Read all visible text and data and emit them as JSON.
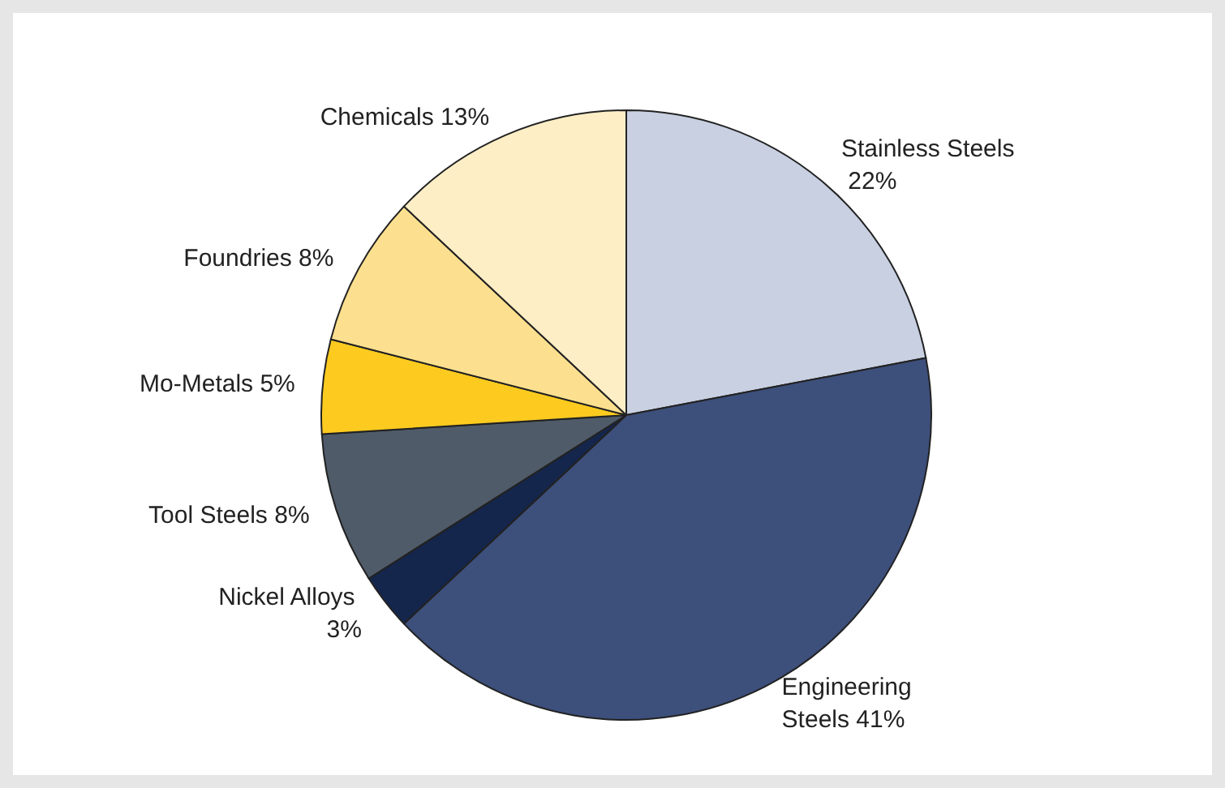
{
  "chart_data": {
    "type": "pie",
    "categories": [
      "Stainless Steels",
      "Engineering Steels",
      "Nickel Alloys",
      "Tool Steels",
      "Mo-Metals",
      "Foundries",
      "Chemicals"
    ],
    "values": [
      22,
      41,
      3,
      8,
      5,
      8,
      13
    ],
    "value_labels": [
      "22%",
      "41%",
      "3%",
      "8%",
      "5%",
      "8%",
      "13%"
    ],
    "colors": [
      "#c8d0e2",
      "#3d4f7b",
      "#14264c",
      "#4f5b69",
      "#fdcb1f",
      "#fde08f",
      "#fdeec6"
    ],
    "legend": false
  }
}
